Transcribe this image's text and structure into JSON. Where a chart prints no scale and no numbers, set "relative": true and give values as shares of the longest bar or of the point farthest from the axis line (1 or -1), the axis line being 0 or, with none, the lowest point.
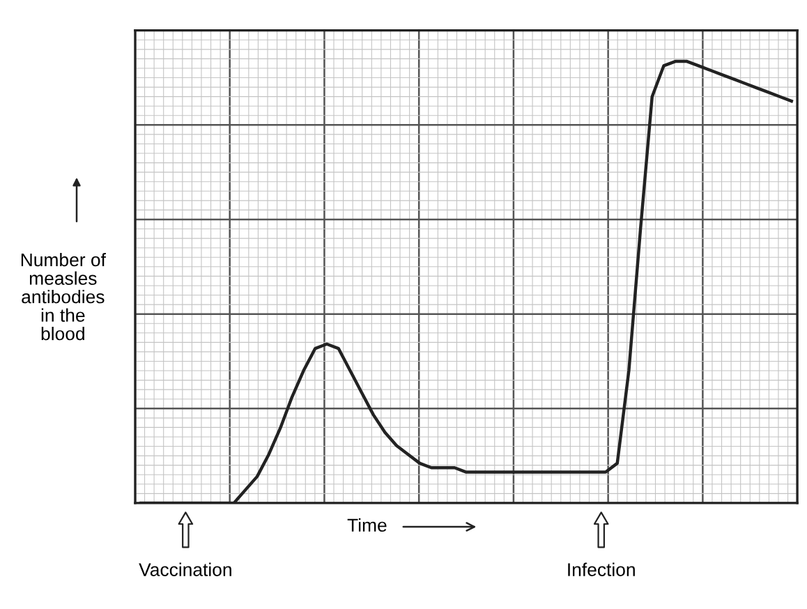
{
  "chart_data": {
    "type": "line",
    "relative": true,
    "xlabel": "Time",
    "ylabel": "Number of measles antibodies in the blood",
    "categories": [
      null,
      null,
      null,
      null,
      null,
      null,
      null,
      null,
      null,
      null,
      null,
      null,
      null,
      null,
      null,
      null,
      null,
      null,
      null,
      null,
      null,
      null,
      null,
      null,
      null,
      null,
      null,
      null,
      null,
      null,
      null,
      null,
      null,
      null,
      null,
      null,
      null,
      null,
      null,
      null,
      null,
      null,
      null,
      null,
      null,
      null,
      null,
      null,
      null,
      null,
      null,
      null,
      null,
      null,
      null,
      null,
      null
    ],
    "series": [
      {
        "color": "#222222",
        "values": [
          0,
          0,
          0,
          0,
          0,
          0,
          0,
          0,
          0,
          0.03,
          0.06,
          0.11,
          0.17,
          0.24,
          0.3,
          0.35,
          0.36,
          0.35,
          0.3,
          0.25,
          0.2,
          0.16,
          0.13,
          0.11,
          0.09,
          0.08,
          0.08,
          0.08,
          0.07,
          0.07,
          0.07,
          0.07,
          0.07,
          0.07,
          0.07,
          0.07,
          0.07,
          0.07,
          0.07,
          0.07,
          0.07,
          0.09,
          0.3,
          0.62,
          0.92,
          0.99,
          1.0,
          1.0,
          0.99,
          0.98,
          0.97,
          0.96,
          0.95,
          0.94,
          0.93,
          0.92,
          0.91
        ]
      }
    ],
    "annotations": [
      "Vaccination",
      "Infection"
    ],
    "grid": true,
    "marker": "none",
    "line_style": "solid"
  }
}
